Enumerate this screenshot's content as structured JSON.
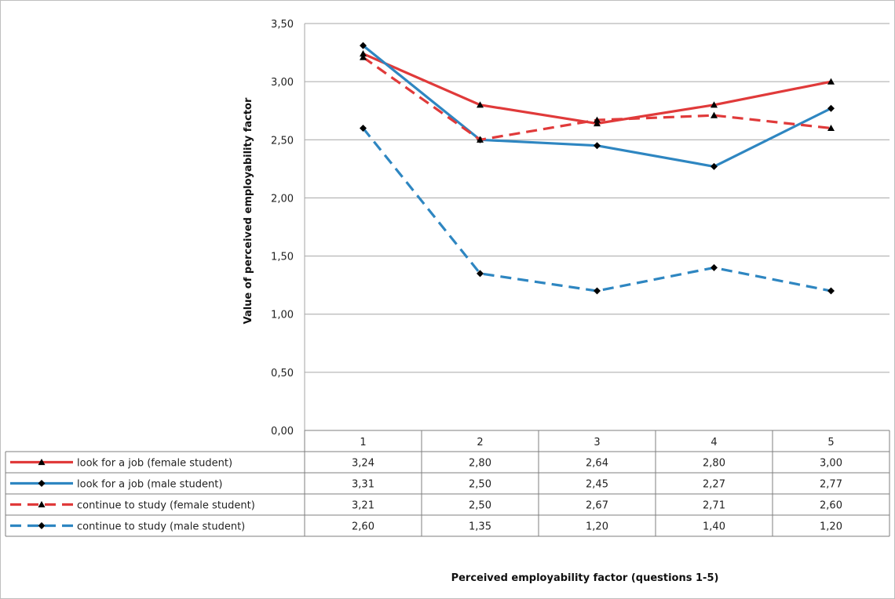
{
  "chart_data": {
    "type": "line",
    "title": "",
    "xlabel": "Perceived employability factor (questions 1-5)",
    "ylabel": "Value of perceived employability factor",
    "ylim": [
      0,
      3.5
    ],
    "yticks": [
      "0,00",
      "0,50",
      "1,00",
      "1,50",
      "2,00",
      "2,50",
      "3,00",
      "3,50"
    ],
    "categories": [
      "1",
      "2",
      "3",
      "4",
      "5"
    ],
    "grid": true,
    "legend": "data-table-below",
    "series": [
      {
        "name": "look for a job (female student)",
        "values": [
          3.24,
          2.8,
          2.64,
          2.8,
          3.0
        ],
        "labels": [
          "3,24",
          "2,80",
          "2,64",
          "2,80",
          "3,00"
        ],
        "color": "#e03a3a",
        "dash": "solid",
        "marker": "triangle"
      },
      {
        "name": "look for a job (male student)",
        "values": [
          3.31,
          2.5,
          2.45,
          2.27,
          2.77
        ],
        "labels": [
          "3,31",
          "2,50",
          "2,45",
          "2,27",
          "2,77"
        ],
        "color": "#2e86c1",
        "dash": "solid",
        "marker": "diamond"
      },
      {
        "name": "continue to study (female student)",
        "values": [
          3.21,
          2.5,
          2.67,
          2.71,
          2.6
        ],
        "labels": [
          "3,21",
          "2,50",
          "2,67",
          "2,71",
          "2,60"
        ],
        "color": "#e03a3a",
        "dash": "dashed",
        "marker": "triangle"
      },
      {
        "name": "continue to study (male student)",
        "values": [
          2.6,
          1.35,
          1.2,
          1.4,
          1.2
        ],
        "labels": [
          "2,60",
          "1,35",
          "1,20",
          "1,40",
          "1,20"
        ],
        "color": "#2e86c1",
        "dash": "dashed",
        "marker": "diamond"
      }
    ]
  }
}
